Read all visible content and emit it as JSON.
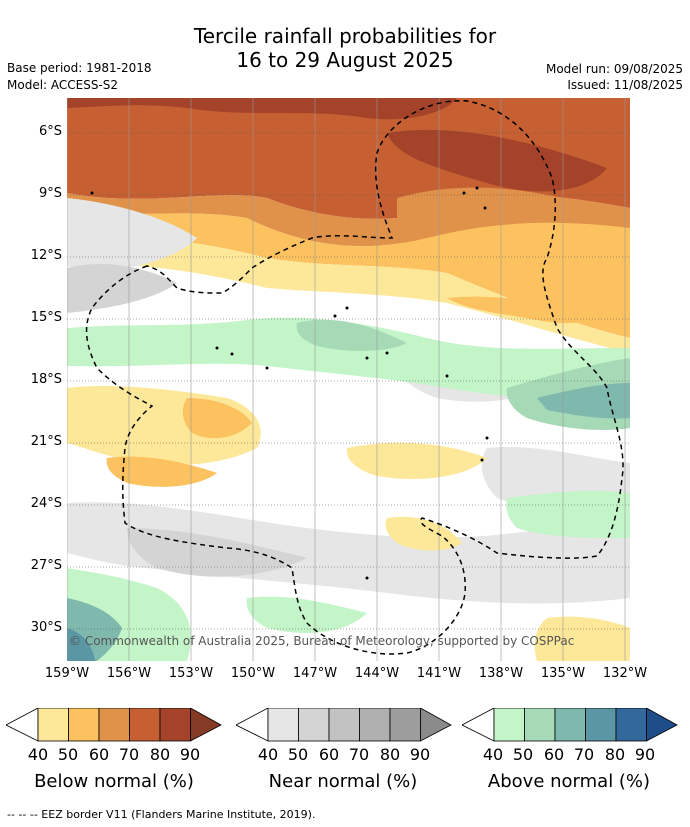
{
  "title": {
    "line1": "Tercile rainfall probabilities for",
    "line2": "16 to 29 August 2025"
  },
  "meta_left": {
    "base_period": "Base period: 1981-2018",
    "model": "Model: ACCESS-S2"
  },
  "meta_right": {
    "model_run": "Model run: 09/08/2025",
    "issued": "Issued: 11/08/2025"
  },
  "map": {
    "lat_labels": [
      "6°S",
      "9°S",
      "12°S",
      "15°S",
      "18°S",
      "21°S",
      "24°S",
      "27°S",
      "30°S"
    ],
    "lon_labels": [
      "159°W",
      "156°W",
      "153°W",
      "150°W",
      "147°W",
      "144°W",
      "141°W",
      "138°W",
      "135°W",
      "132°W"
    ],
    "lat_values": [
      -6,
      -9,
      -12,
      -15,
      -18,
      -21,
      -24,
      -27,
      -30
    ],
    "lon_values": [
      -159,
      -156,
      -153,
      -150,
      -147,
      -144,
      -141,
      -138,
      -135,
      -132
    ],
    "copyright": "© Commonwealth of Australia 2025, Bureau of Meteorology, supported by COSPPac"
  },
  "colorbars": [
    {
      "name": "below",
      "label": "Below normal (%)",
      "ticks": [
        "40",
        "50",
        "60",
        "70",
        "80",
        "90"
      ],
      "colors": [
        "#fde89a",
        "#fbc25f",
        "#e0914a",
        "#c65f32",
        "#a4432a",
        "#853a26"
      ]
    },
    {
      "name": "near",
      "label": "Near normal (%)",
      "ticks": [
        "40",
        "50",
        "60",
        "70",
        "80",
        "90"
      ],
      "colors": [
        "#e6e6e6",
        "#d4d4d4",
        "#c2c2c2",
        "#b0b0b0",
        "#9d9d9d",
        "#8a8a8a"
      ]
    },
    {
      "name": "above",
      "label": "Above normal (%)",
      "ticks": [
        "40",
        "50",
        "60",
        "70",
        "80",
        "90"
      ],
      "colors": [
        "#c4f5c8",
        "#a6d9b6",
        "#7fb8ad",
        "#5a96a3",
        "#33689b",
        "#1e4d8a"
      ]
    }
  ],
  "footer": "--  --  -- EEZ border V11 (Flanders Marine Institute, 2019)."
}
